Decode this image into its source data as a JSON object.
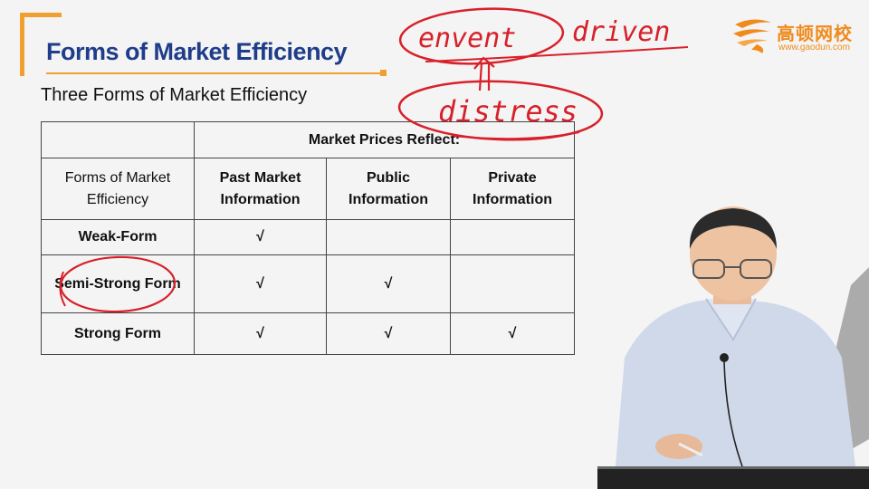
{
  "header": {
    "title": "Forms of Market Efficiency",
    "subtitle": "Three Forms of Market Efficiency"
  },
  "logo": {
    "name": "高顿网校",
    "url": "www.gaodun.com",
    "icon": "gaodun-logo-icon"
  },
  "table": {
    "group_header": "Market Prices Reflect:",
    "corner_label": "Forms of Market Efficiency",
    "columns": [
      "Past Market Information",
      "Public Information",
      "Private Information"
    ],
    "rows": [
      {
        "form": "Weak-Form",
        "marks": [
          "√",
          "",
          ""
        ]
      },
      {
        "form": "Semi-Strong Form",
        "marks": [
          "√",
          "√",
          ""
        ]
      },
      {
        "form": "Strong Form",
        "marks": [
          "√",
          "√",
          "√"
        ]
      }
    ]
  },
  "annotations": {
    "word1": "envent",
    "word2": "driven",
    "word3": "distress"
  },
  "colors": {
    "title_blue": "#1f3d8a",
    "accent_orange": "#f0a030",
    "ink_red": "#d8202a",
    "logo_orange": "#f08a1c"
  }
}
